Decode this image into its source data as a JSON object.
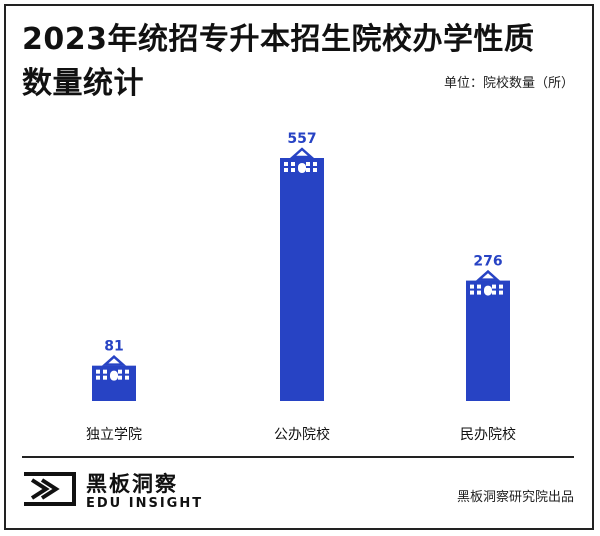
{
  "title": "2023年统招专升本招生院校办学性质数量统计",
  "unit_label": "单位：院校数量（所）",
  "colors": {
    "bar": "#2743c4",
    "label": "#2743c4",
    "text": "#111111"
  },
  "chart_data": {
    "type": "bar",
    "title": "2023年统招专升本招生院校办学性质数量统计",
    "categories": [
      "独立学院",
      "公办院校",
      "民办院校"
    ],
    "values": [
      81,
      557,
      276
    ],
    "xlabel": "",
    "ylabel": "院校数量（所）",
    "data_labels": [
      "81",
      "557",
      "276"
    ],
    "grid": false,
    "legend": "none"
  },
  "footer": {
    "brand_cn": "黑板洞察",
    "brand_en": "EDU INSIGHT",
    "credit": "黑板洞察研究院出品"
  }
}
